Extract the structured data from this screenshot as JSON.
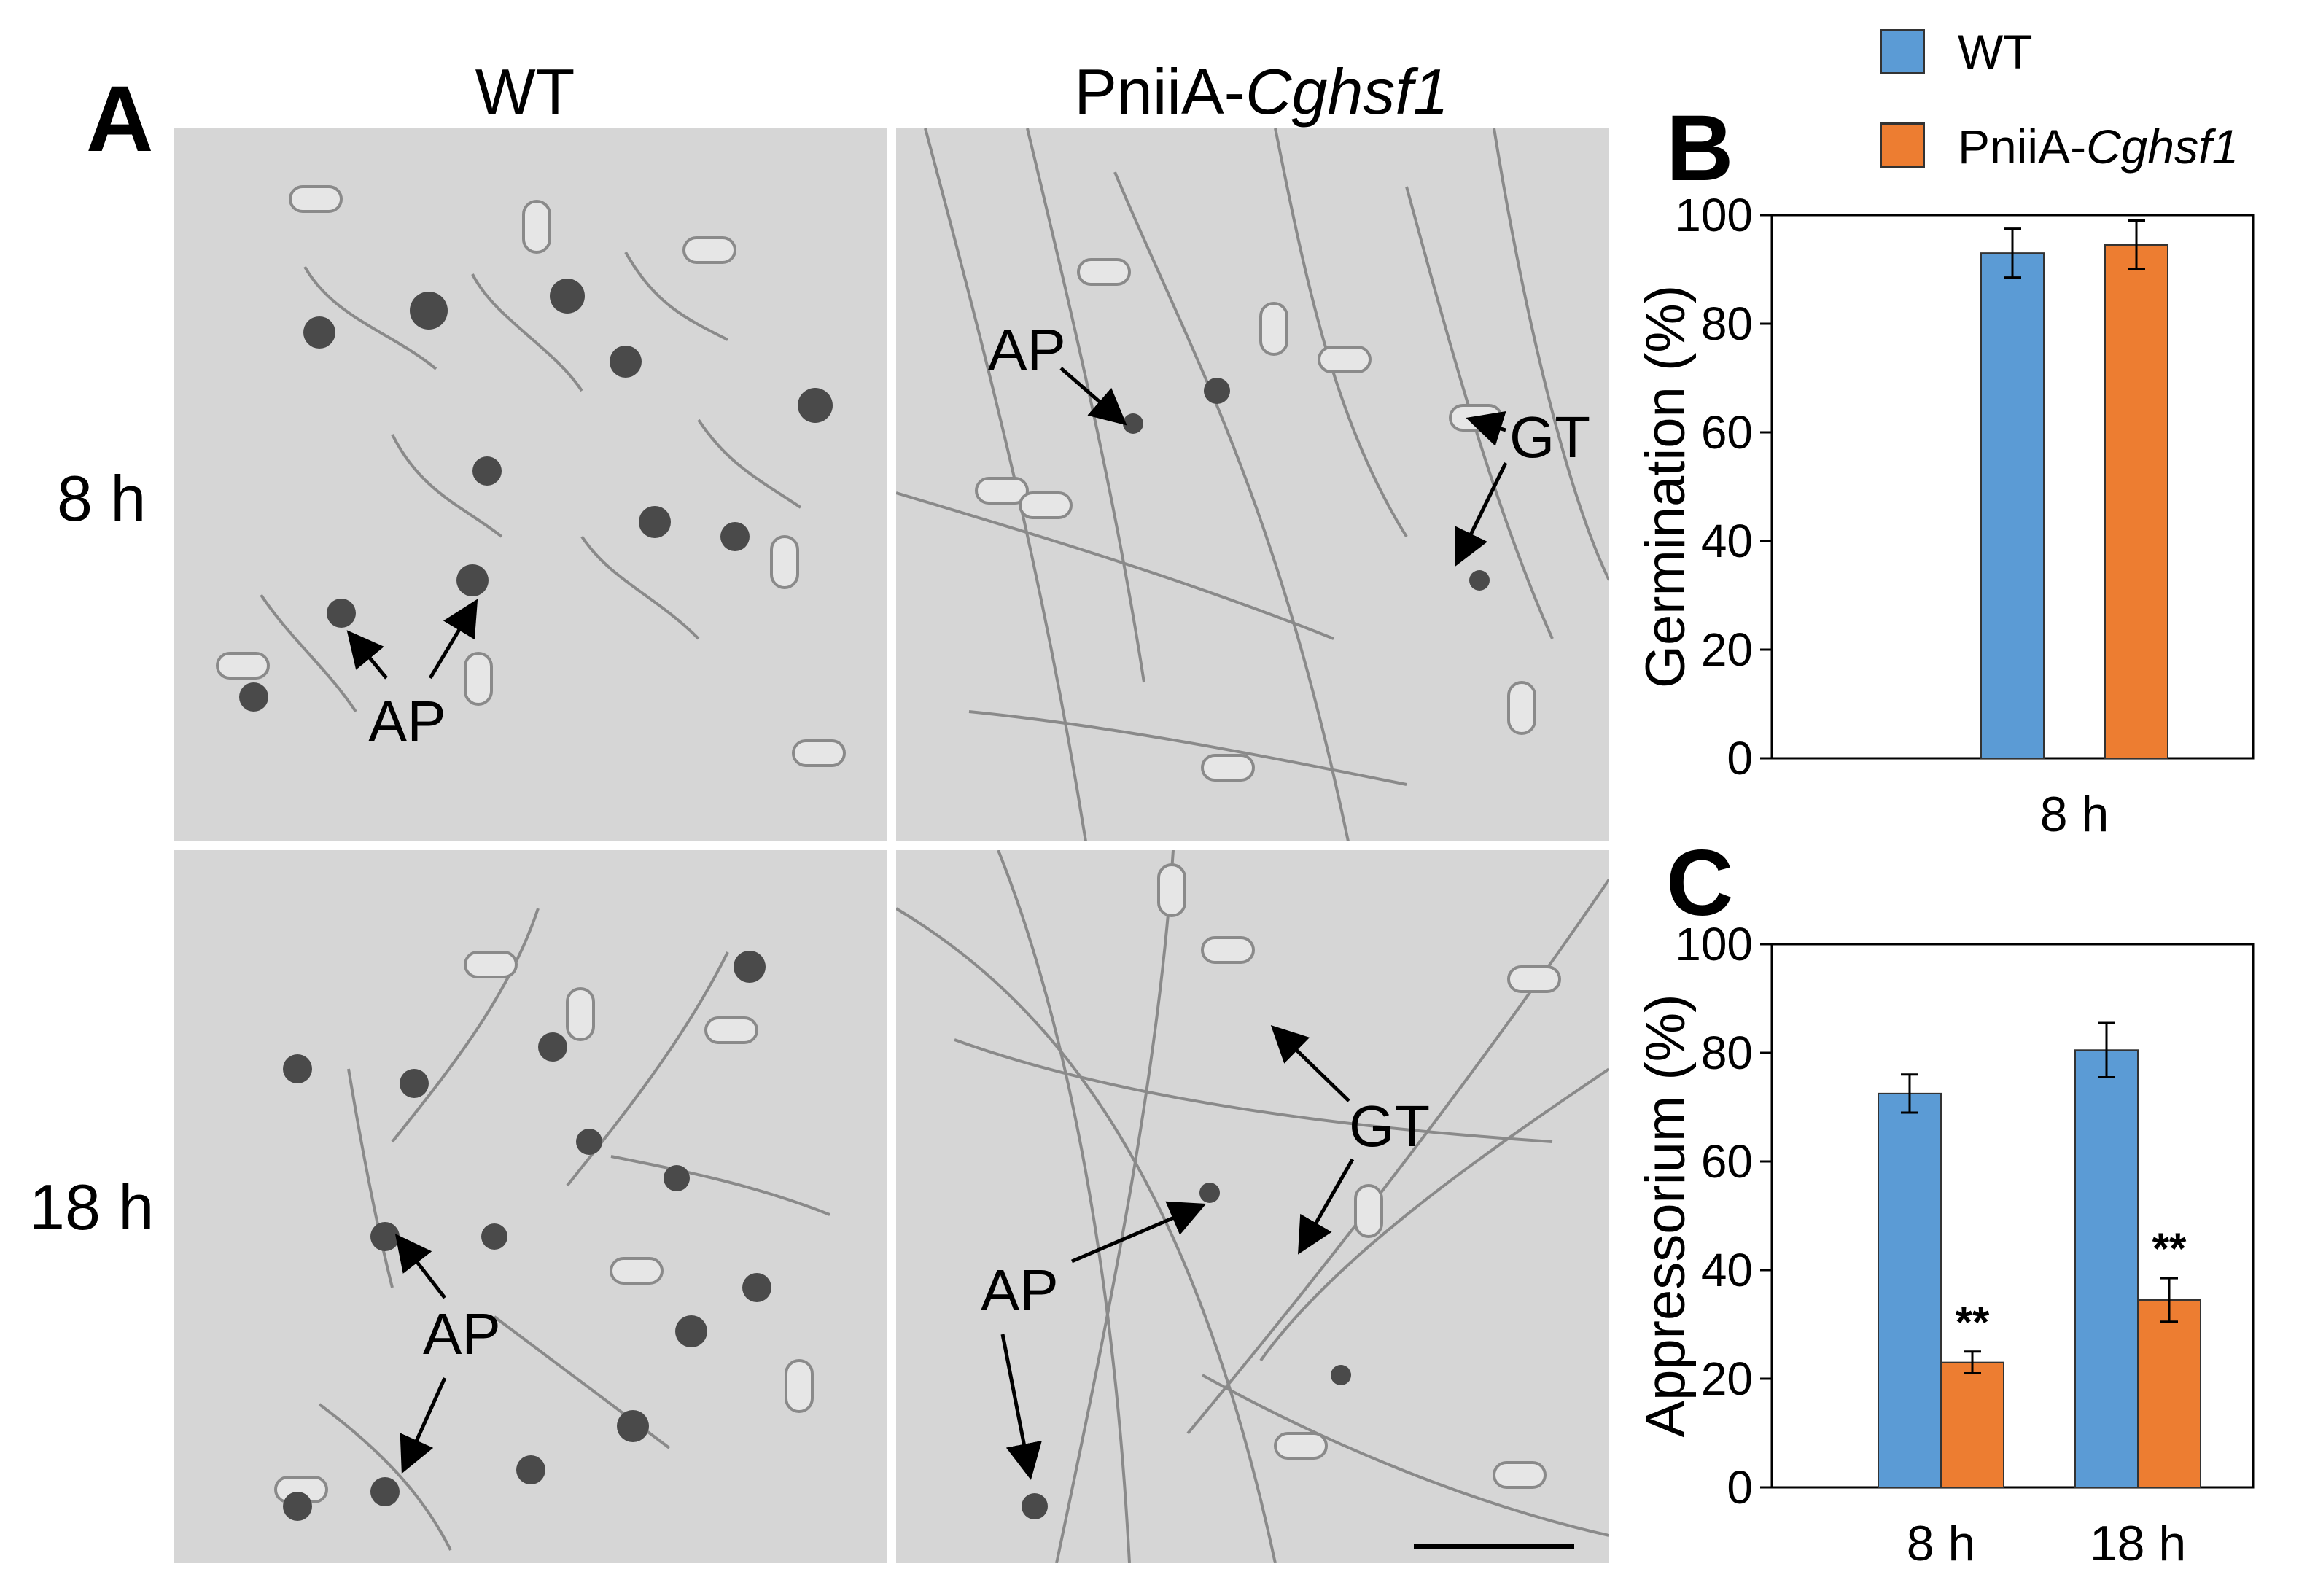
{
  "figure": {
    "panel_letters": {
      "a": "A",
      "b": "B",
      "c": "C"
    },
    "column_labels": {
      "wt": "WT",
      "mutant_prefix": "PniiA-",
      "mutant_italic": "Cghsf1"
    },
    "row_labels": {
      "r1": "8 h",
      "r2": "18 h"
    },
    "annotations": {
      "ap": "AP",
      "gt": "GT"
    }
  },
  "legend": {
    "items": [
      {
        "name": "WT",
        "color": "#5b9bd5"
      },
      {
        "name_prefix": "PniiA-",
        "name_italic": "Cghsf1",
        "color": "#ed7d31"
      }
    ]
  },
  "chart_data": [
    {
      "panel": "B",
      "type": "bar",
      "categories": [
        "8 h"
      ],
      "series": [
        {
          "name": "WT",
          "values": [
            93
          ],
          "errors": [
            4.5
          ],
          "color": "#5b9bd5"
        },
        {
          "name": "PniiA-Cghsf1",
          "values": [
            94.5
          ],
          "errors": [
            4.5
          ],
          "color": "#ed7d31"
        }
      ],
      "ylabel": "Germination (%)",
      "ylim": [
        0,
        100
      ],
      "yticks": [
        0,
        20,
        40,
        60,
        80,
        100
      ],
      "significance": [
        "",
        ""
      ]
    },
    {
      "panel": "C",
      "type": "bar",
      "categories": [
        "8 h",
        "18 h"
      ],
      "series": [
        {
          "name": "WT",
          "values": [
            72.5,
            80.5
          ],
          "errors": [
            3.5,
            5
          ],
          "color": "#5b9bd5"
        },
        {
          "name": "PniiA-Cghsf1",
          "values": [
            23,
            34.5
          ],
          "errors": [
            2,
            4
          ],
          "color": "#ed7d31",
          "marks": [
            "**",
            "**"
          ]
        }
      ],
      "ylabel": "Appressorium (%)",
      "ylim": [
        0,
        100
      ],
      "yticks": [
        0,
        20,
        40,
        60,
        80,
        100
      ]
    }
  ]
}
